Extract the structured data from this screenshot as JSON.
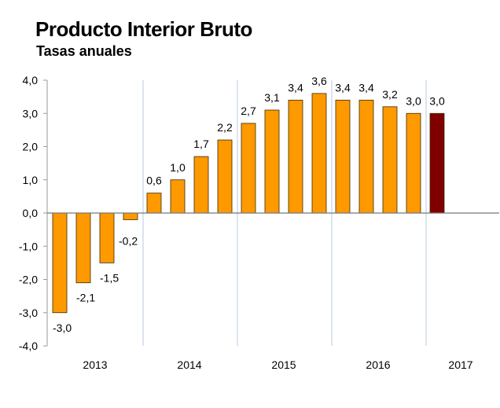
{
  "title": "Producto Interior Bruto",
  "subtitle": "Tasas anuales",
  "chart_data": {
    "type": "bar",
    "title": "Producto Interior Bruto",
    "subtitle": "Tasas anuales",
    "xlabel": "",
    "ylabel": "",
    "ylim": [
      -4.0,
      4.0
    ],
    "yticks": [
      "4,0",
      "3,0",
      "2,0",
      "1,0",
      "0,0",
      "-1,0",
      "-2,0",
      "-3,0",
      "-4,0"
    ],
    "ytick_values": [
      4,
      3,
      2,
      1,
      0,
      -1,
      -2,
      -3,
      -4
    ],
    "years": [
      "2013",
      "2014",
      "2015",
      "2016",
      "2017"
    ],
    "values": [
      -3.0,
      -2.1,
      -1.5,
      -0.2,
      0.6,
      1.0,
      1.7,
      2.2,
      2.7,
      3.1,
      3.4,
      3.6,
      3.4,
      3.4,
      3.2,
      3.0,
      3.0
    ],
    "value_labels": [
      "-3,0",
      "-2,1",
      "-1,5",
      "-0,2",
      "0,6",
      "1,0",
      "1,7",
      "2,2",
      "2,7",
      "3,1",
      "3,4",
      "3,6",
      "3,4",
      "3,4",
      "3,2",
      "3,0",
      "3,0"
    ],
    "bar_colors": [
      "#FF9900",
      "#FF9900",
      "#FF9900",
      "#FF9900",
      "#FF9900",
      "#FF9900",
      "#FF9900",
      "#FF9900",
      "#FF9900",
      "#FF9900",
      "#FF9900",
      "#FF9900",
      "#FF9900",
      "#FF9900",
      "#FF9900",
      "#FF9900",
      "#800000"
    ],
    "year_separators": true,
    "grid": false
  }
}
